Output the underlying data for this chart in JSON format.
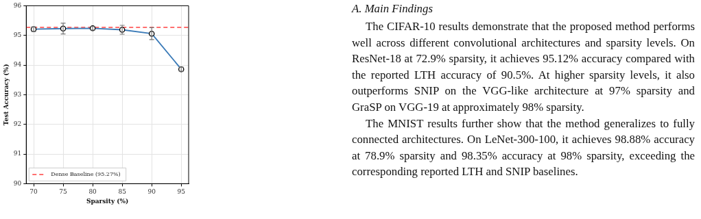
{
  "chart_data": [
    {
      "type": "line",
      "xlabel": "Sparsity (%)",
      "ylabel": "Test Accuracy (%)",
      "x": [
        70,
        75,
        80,
        85,
        90,
        95
      ],
      "series": [
        {
          "color": "#3b7bb8",
          "values": [
            95.21,
            95.23,
            95.24,
            95.19,
            95.06,
            93.86
          ],
          "errors": [
            0.08,
            0.18,
            0.06,
            0.15,
            0.2,
            0.07
          ]
        }
      ],
      "xlim": [
        68.75,
        96.25
      ],
      "xticks": [
        70,
        75,
        80,
        85,
        90,
        95
      ],
      "ylim": [
        90,
        96
      ],
      "yticks": [
        90,
        91,
        92,
        93,
        94,
        95,
        96
      ],
      "ref_lines": [
        {
          "axis": "y",
          "value": 95.27,
          "label": "Dense Baseline (95.27%)",
          "color": "#ff4040",
          "line_style": "dashed"
        }
      ],
      "grid": true,
      "legend": "bottom left",
      "marker": "circle",
      "line_style": "solid"
    },
    {
      "type": "other",
      "title": "A. Main Findings",
      "annotations": [
        "The CIFAR-10 results demonstrate that the proposed method performs well across different convolutional architectures and sparsity levels. On ResNet-18 at 72.9% sparsity, it achieves 95.12% accuracy compared with the reported LTH accuracy of 90.5%. At higher sparsity levels, it also outperforms SNIP on the VGG-like architecture at 97% sparsity and GraSP on VGG-19 at approximately 98% sparsity.",
        "The MNIST results further show that the method generalizes to fully connected architectures. On LeNet-300-100, it achieves 98.88% accuracy at 78.9% sparsity and 98.35% accuracy at 98% sparsity, exceeding the corresponding reported LTH and SNIP baselines."
      ]
    }
  ]
}
